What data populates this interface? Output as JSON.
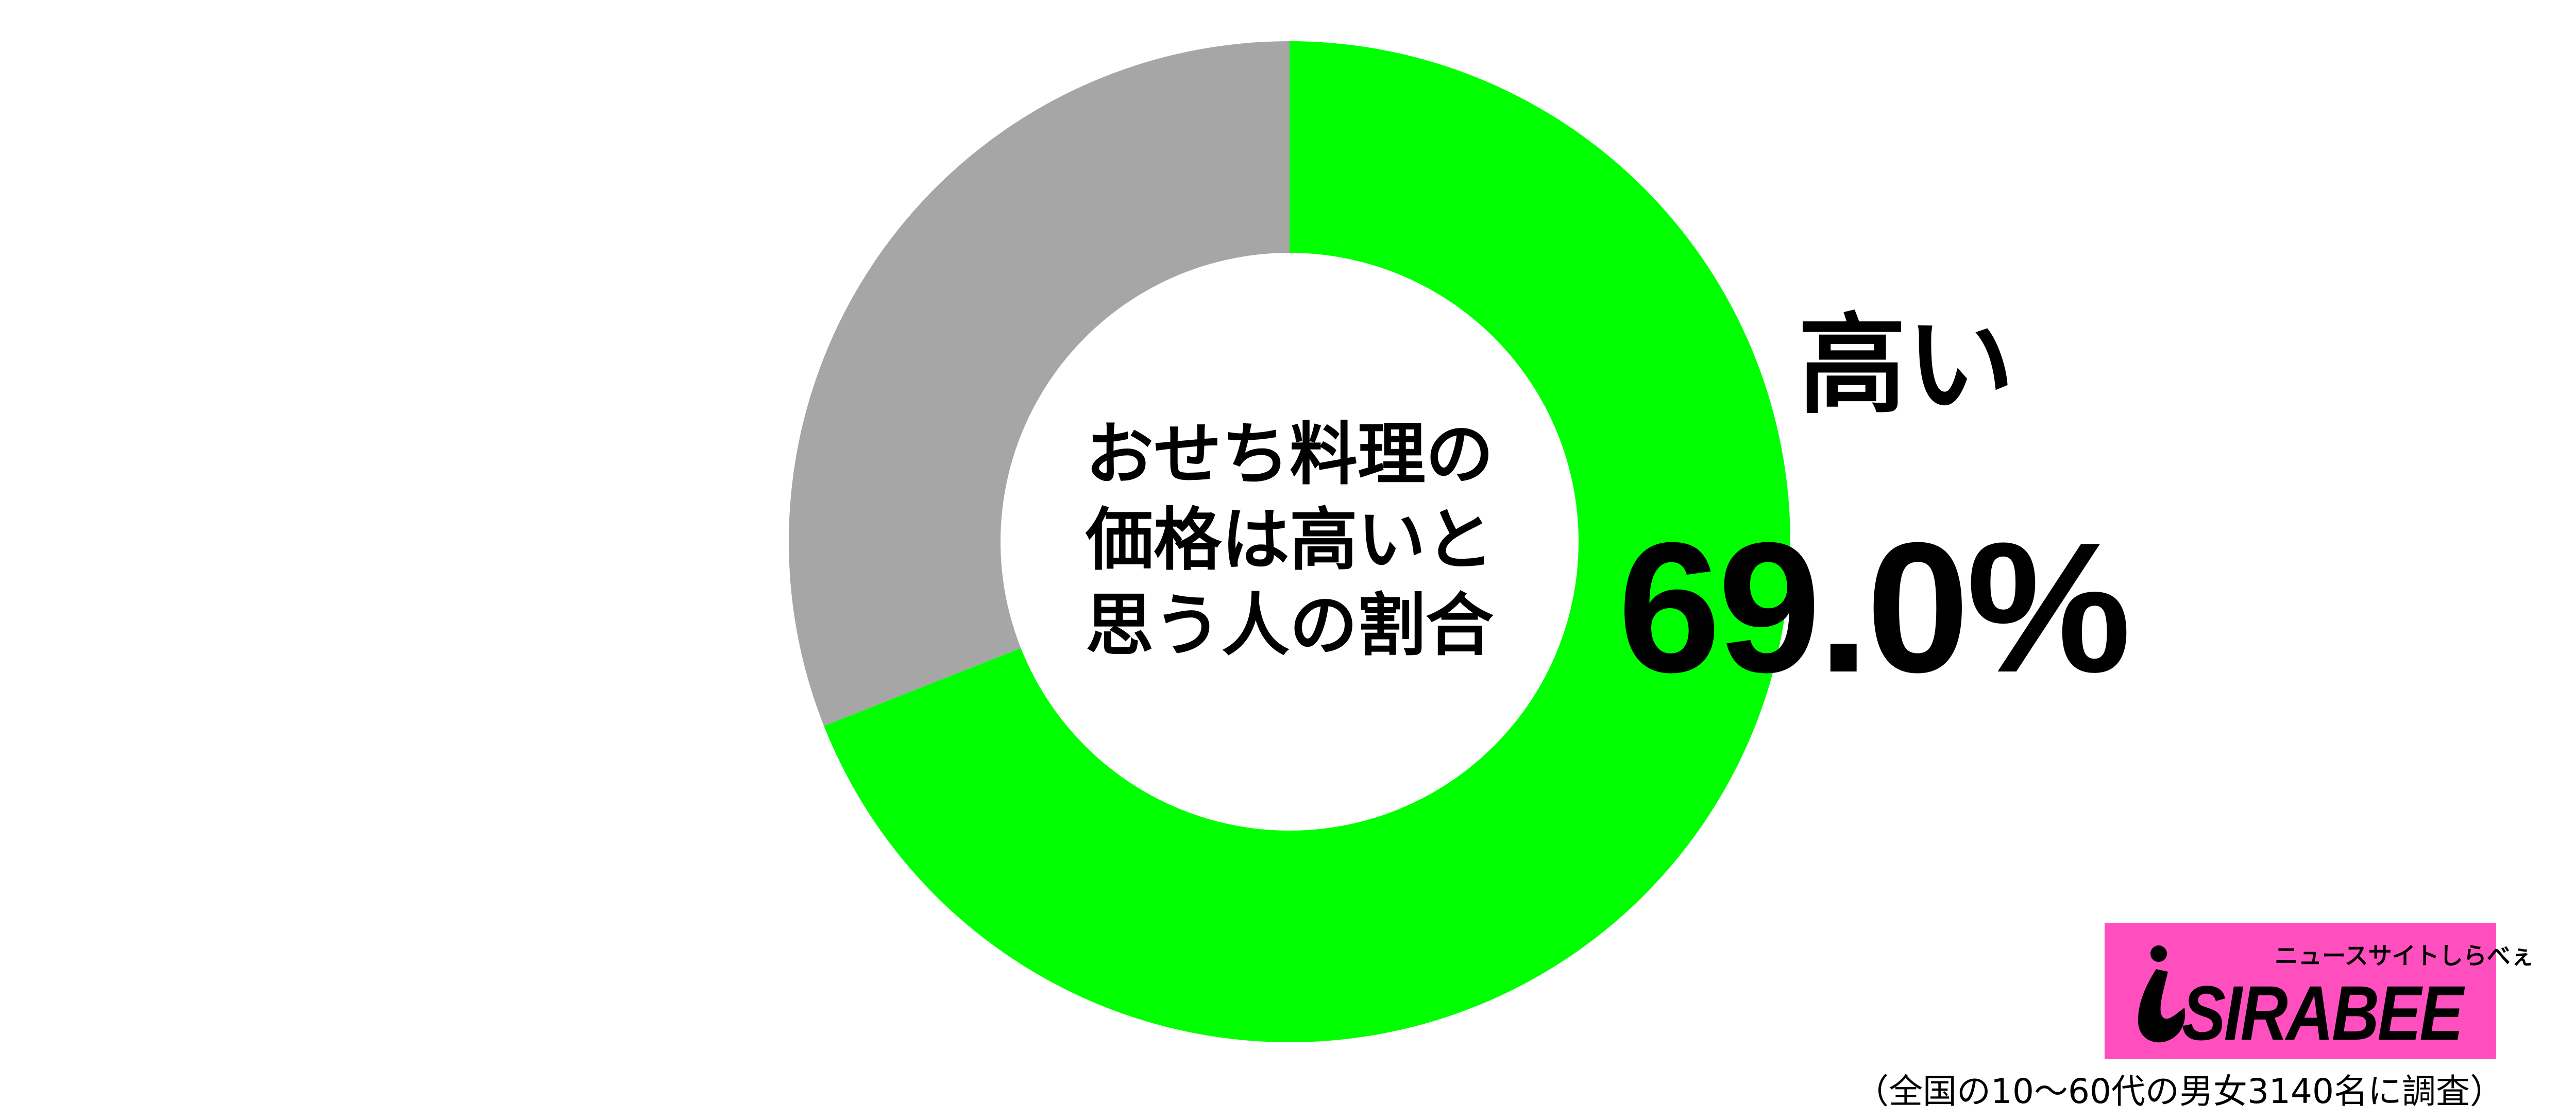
{
  "chart_data": {
    "type": "pie",
    "variant": "donut",
    "title": "おせち料理の価格は高いと思う人の割合",
    "slices": [
      {
        "label": "高い",
        "value": 69.0,
        "color": "#00ff00"
      },
      {
        "label": "",
        "value": 31.0,
        "color": "#a6a6a6"
      }
    ],
    "start": "top",
    "direction": "clockwise",
    "highlight_label": "高い",
    "highlight_value_text": "69.0%"
  },
  "title_lines": [
    "おせち料理の",
    "価格は高いと",
    "思う人の割合"
  ],
  "logo": {
    "tagline": "ニュースサイトしらべぇ",
    "wordmark": "SIRABEE",
    "color": "#ff4fbf"
  },
  "footnote": "（全国の10〜60代の男女3140名に調査）"
}
